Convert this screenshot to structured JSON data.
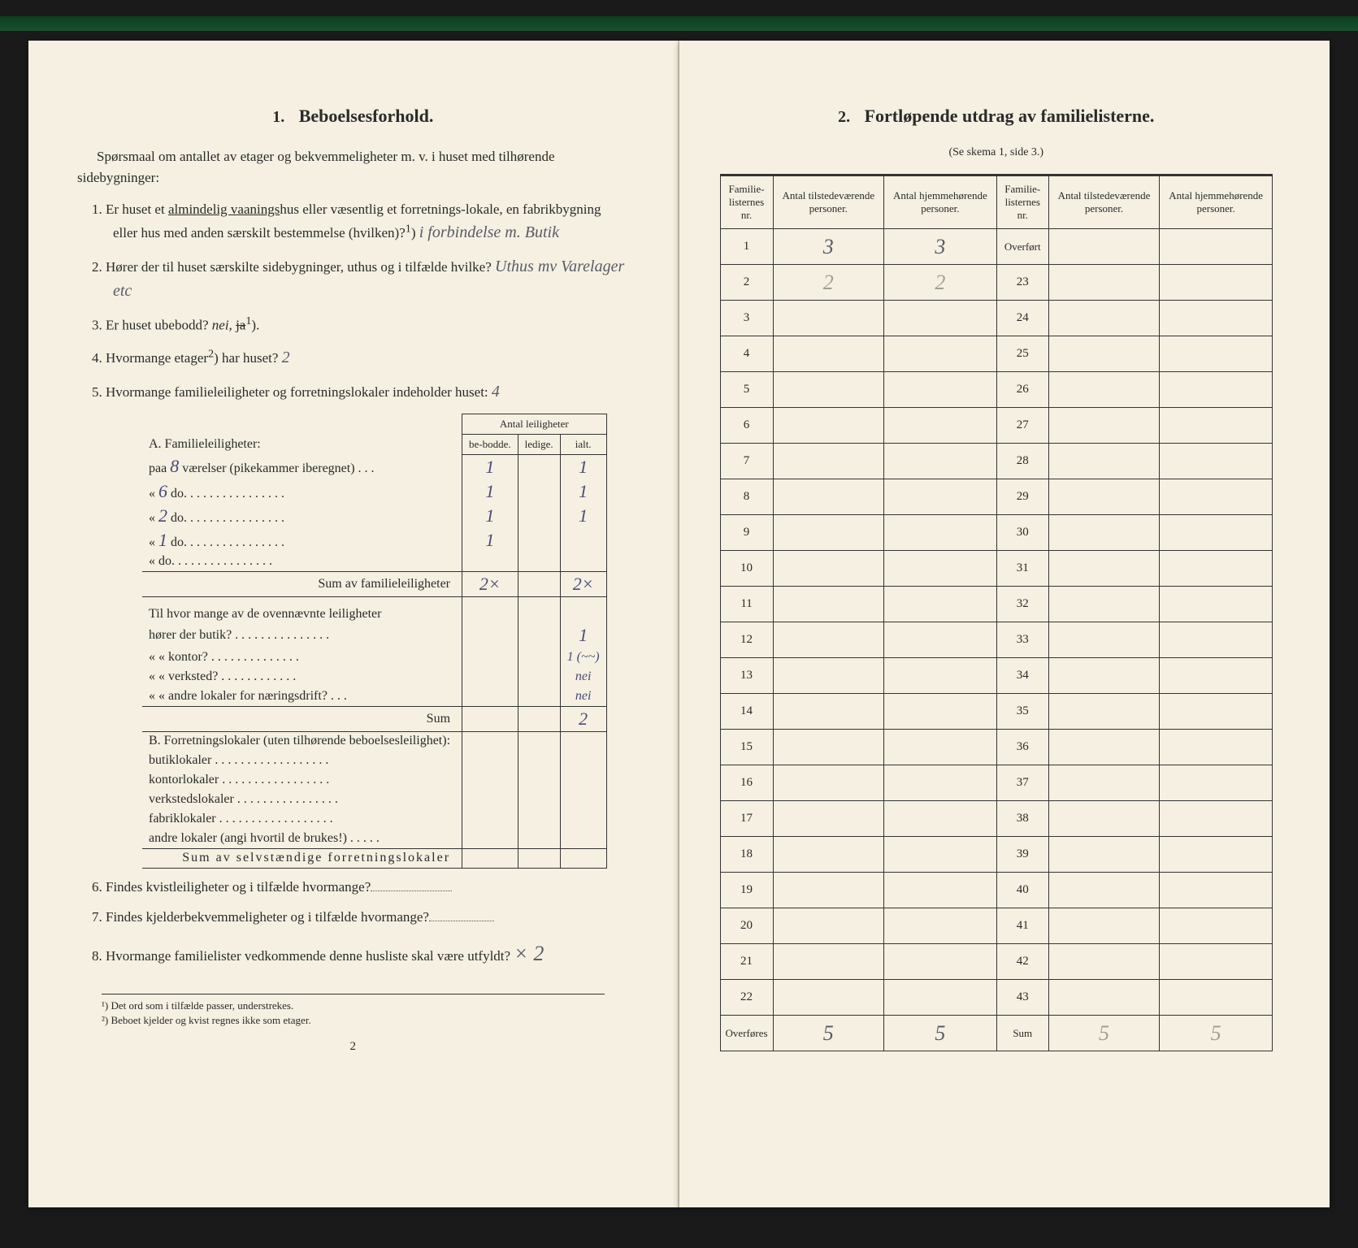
{
  "left": {
    "section_num": "1.",
    "section_title": "Beboelsesforhold.",
    "intro": "Spørsmaal om antallet av etager og bekvemmeligheter m. v. i huset med tilhørende sidebygninger:",
    "q1": {
      "num": "1.",
      "text_a": "Er huset et ",
      "underlined": "almindelig vaanings",
      "text_b": "hus eller væsentlig et forretnings-lokale, en fabrikbygning eller hus med anden særskilt bestemmelse (hvilken)?",
      "sup": "1",
      "hw": "i forbindelse m. Butik"
    },
    "q2": {
      "num": "2.",
      "text": "Hører der til huset særskilte sidebygninger, uthus og i tilfælde hvilke?",
      "hw": "Uthus mv Varelager etc"
    },
    "q3": {
      "num": "3.",
      "text": "Er huset ubebodd?",
      "hw_italic": "nei,",
      "crossed": "ja",
      "sup": "1"
    },
    "q4": {
      "num": "4.",
      "text": "Hvormange etager",
      "sup": "2",
      "text_b": ") har huset?",
      "hw": "2"
    },
    "q5": {
      "num": "5.",
      "text": "Hvormange familieleiligheter og forretningslokaler indeholder huset:",
      "hw": "4"
    },
    "leil_header": "Antal leiligheter",
    "leil_cols": [
      "be-bodde.",
      "ledige.",
      "ialt."
    ],
    "sectionA": "A. Familieleiligheter:",
    "rowA": [
      {
        "label_pre": "paa ",
        "hw_pre": "8",
        "label": " værelser (pikekammer iberegnet) . . .",
        "bebodde": "1",
        "ledige": "",
        "ialt": "1"
      },
      {
        "label_pre": "«   ",
        "hw_pre": "6",
        "label": "    do.   . . . . . . . . . . . . . . .",
        "bebodde": "1",
        "ledige": "",
        "ialt": "1"
      },
      {
        "label_pre": "«   ",
        "hw_pre": "2",
        "label": "    do.   . . . . . . . . . . . . . . .",
        "bebodde": "1",
        "ledige": "",
        "ialt": "1"
      },
      {
        "label_pre": "«   ",
        "hw_pre": "1",
        "label": "    do.   . . . . . . . . . . . . . . .",
        "bebodde": "1",
        "ledige": "",
        "ialt": ""
      },
      {
        "label_pre": "«   ",
        "hw_pre": "",
        "label": "    do.   . . . . . . . . . . . . . . .",
        "bebodde": "",
        "ledige": "",
        "ialt": ""
      }
    ],
    "sumA_label": "Sum av familieleiligheter",
    "sumA": {
      "bebodde": "2×",
      "ledige": "",
      "ialt": "2×"
    },
    "midQ_intro": "Til hvor mange av de ovennævnte leiligheter",
    "midQ": [
      {
        "label": "hører der butik? . . . . . . . . . . . . . . .",
        "val": "1"
      },
      {
        "label": "«    «   kontor? . . . . . . . . . . . . . .",
        "val": "1 (~~)"
      },
      {
        "label": "«    «   verksted? . . . . . . . . . . . .",
        "val": "nei"
      },
      {
        "label": "«    «   andre lokaler for næringsdrift? . . .",
        "val": "nei"
      }
    ],
    "midQ_sum_label": "Sum",
    "midQ_sum": "2",
    "sectionB": "B. Forretningslokaler (uten tilhørende beboelsesleilighet):",
    "rowB": [
      "butiklokaler . . . . . . . . . . . . . . . . . .",
      "kontorlokaler  . . . . . . . . . . . . . . . . .",
      "verkstedslokaler . . . . . . . . . . . . . . . .",
      "fabriklokaler . . . . . . . . . . . . . . . . . .",
      "andre lokaler (angi hvortil de brukes!) . . . . ."
    ],
    "sumB_label": "Sum av selvstændige forretningslokaler",
    "q6": {
      "num": "6.",
      "text": "Findes kvistleiligheter og i tilfælde hvormange?"
    },
    "q7": {
      "num": "7.",
      "text": "Findes kjelderbekvemmeligheter og i tilfælde hvormange?"
    },
    "q8": {
      "num": "8.",
      "text": "Hvormange familielister vedkommende denne husliste skal være utfyldt?",
      "hw": "× 2"
    },
    "footnotes": [
      "¹) Det ord som i tilfælde passer, understrekes.",
      "²) Beboet kjelder og kvist regnes ikke som etager."
    ],
    "page_num": "2"
  },
  "right": {
    "section_num": "2.",
    "section_title": "Fortløpende utdrag av familielisterne.",
    "subtitle": "(Se skema 1, side 3.)",
    "headers": [
      "Familie-listernes nr.",
      "Antal tilstedeværende personer.",
      "Antal hjemmehørende personer.",
      "Familie-listernes nr.",
      "Antal tilstedeværende personer.",
      "Antal hjemmehørende personer."
    ],
    "rows": [
      {
        "n1": "1",
        "a1": "3",
        "b1": "3",
        "n2": "Overført",
        "a2": "",
        "b2": ""
      },
      {
        "n1": "2",
        "a1": "2",
        "b1": "2",
        "n2": "23",
        "a2": "",
        "b2": ""
      },
      {
        "n1": "3",
        "a1": "",
        "b1": "",
        "n2": "24",
        "a2": "",
        "b2": ""
      },
      {
        "n1": "4",
        "a1": "",
        "b1": "",
        "n2": "25",
        "a2": "",
        "b2": ""
      },
      {
        "n1": "5",
        "a1": "",
        "b1": "",
        "n2": "26",
        "a2": "",
        "b2": ""
      },
      {
        "n1": "6",
        "a1": "",
        "b1": "",
        "n2": "27",
        "a2": "",
        "b2": ""
      },
      {
        "n1": "7",
        "a1": "",
        "b1": "",
        "n2": "28",
        "a2": "",
        "b2": ""
      },
      {
        "n1": "8",
        "a1": "",
        "b1": "",
        "n2": "29",
        "a2": "",
        "b2": ""
      },
      {
        "n1": "9",
        "a1": "",
        "b1": "",
        "n2": "30",
        "a2": "",
        "b2": ""
      },
      {
        "n1": "10",
        "a1": "",
        "b1": "",
        "n2": "31",
        "a2": "",
        "b2": ""
      },
      {
        "n1": "11",
        "a1": "",
        "b1": "",
        "n2": "32",
        "a2": "",
        "b2": ""
      },
      {
        "n1": "12",
        "a1": "",
        "b1": "",
        "n2": "33",
        "a2": "",
        "b2": ""
      },
      {
        "n1": "13",
        "a1": "",
        "b1": "",
        "n2": "34",
        "a2": "",
        "b2": ""
      },
      {
        "n1": "14",
        "a1": "",
        "b1": "",
        "n2": "35",
        "a2": "",
        "b2": ""
      },
      {
        "n1": "15",
        "a1": "",
        "b1": "",
        "n2": "36",
        "a2": "",
        "b2": ""
      },
      {
        "n1": "16",
        "a1": "",
        "b1": "",
        "n2": "37",
        "a2": "",
        "b2": ""
      },
      {
        "n1": "17",
        "a1": "",
        "b1": "",
        "n2": "38",
        "a2": "",
        "b2": ""
      },
      {
        "n1": "18",
        "a1": "",
        "b1": "",
        "n2": "39",
        "a2": "",
        "b2": ""
      },
      {
        "n1": "19",
        "a1": "",
        "b1": "",
        "n2": "40",
        "a2": "",
        "b2": ""
      },
      {
        "n1": "20",
        "a1": "",
        "b1": "",
        "n2": "41",
        "a2": "",
        "b2": ""
      },
      {
        "n1": "21",
        "a1": "",
        "b1": "",
        "n2": "42",
        "a2": "",
        "b2": ""
      },
      {
        "n1": "22",
        "a1": "",
        "b1": "",
        "n2": "43",
        "a2": "",
        "b2": ""
      }
    ],
    "footer": {
      "n1": "Overføres",
      "a1": "5",
      "b1": "5",
      "n2": "Sum",
      "a2": "5",
      "b2": "5"
    }
  }
}
